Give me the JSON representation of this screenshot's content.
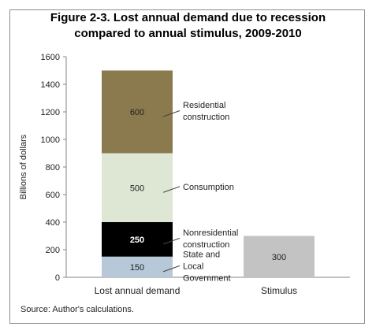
{
  "chart_data": {
    "type": "bar",
    "stacked": true,
    "title_line1": "Figure 2-3. Lost annual demand due to recession",
    "title_line2": "compared to annual stimulus, 2009-2010",
    "ylabel": "Billions of dollars",
    "ylim": [
      0,
      1600
    ],
    "yticks": [
      "0",
      "200",
      "400",
      "600",
      "800",
      "1000",
      "1200",
      "1400",
      "1600"
    ],
    "categories": [
      "Lost annual demand",
      "Stimulus"
    ],
    "series": [
      {
        "name": "State and Local Government",
        "label_lines": [
          "State and",
          "Local",
          "Government"
        ],
        "color": "#b7c9d8",
        "values": [
          150,
          null
        ]
      },
      {
        "name": "Nonresidential construction",
        "label_lines": [
          "Nonresidential",
          "construction"
        ],
        "color": "#000000",
        "values": [
          250,
          null
        ]
      },
      {
        "name": "Consumption",
        "label_lines": [
          "Consumption"
        ],
        "color": "#dde7d4",
        "values": [
          500,
          null
        ]
      },
      {
        "name": "Residential construction",
        "label_lines": [
          "Residential",
          "construction"
        ],
        "color": "#8b7a4d",
        "values": [
          600,
          null
        ]
      },
      {
        "name": "",
        "label_lines": [],
        "color": "#c3c3c3",
        "values": [
          null,
          300
        ]
      }
    ],
    "data_labels": [
      "150",
      "250",
      "500",
      "600",
      "300"
    ]
  },
  "source": "Source: Author's calculations."
}
